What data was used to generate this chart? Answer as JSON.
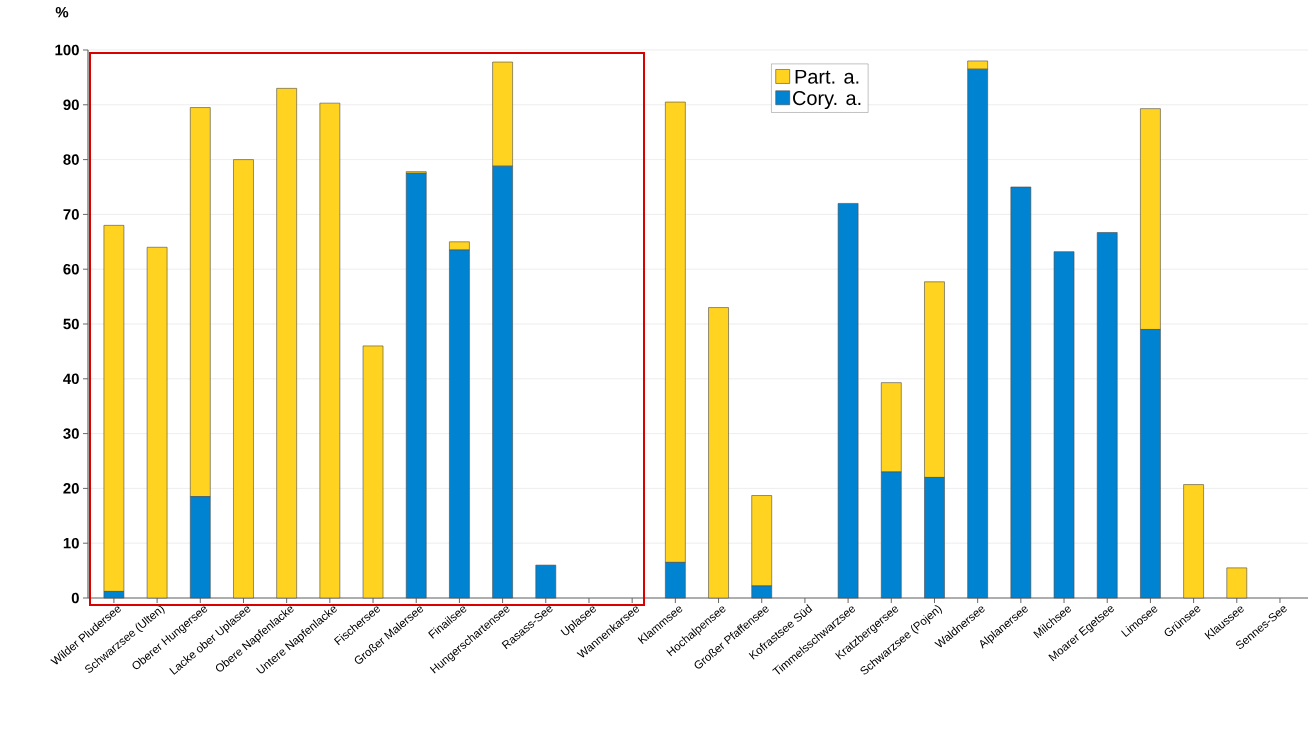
{
  "chart_data": {
    "type": "bar",
    "stacked": true,
    "ylabel": "%",
    "categories": [
      "Wilder Pludersee",
      "Schwarzsee (Ulten)",
      "Oberer Hungersee",
      "Lacke ober Uplasee",
      "Obere Napfenlacke",
      "Untere Napfenlacke",
      "Fischersee",
      "Großer Malersee",
      "Finailsee",
      "Hungerschartensee",
      "Rasass-See",
      "Uplasee",
      "Wannenkarsee",
      "Klammsee",
      "Hochalpensee",
      "Großer Pfaffensee",
      "Kofrastsee Süd",
      "Timmelsschwarzsee",
      "Kratzbergersee",
      "Schwarzsee (Pojen)",
      "Waldnersee",
      "Alplanersee",
      "Milchsee",
      "Moarer Egetsee",
      "Limosee",
      "Grünsee",
      "Klaussee",
      "Sennes-See"
    ],
    "series": [
      {
        "name": "Cory. a.",
        "color": "#0084d1",
        "values": [
          1.2,
          0,
          18.5,
          0,
          0,
          0,
          0,
          77.5,
          63.5,
          78.8,
          6,
          0,
          0,
          6.5,
          0,
          2.2,
          0,
          72,
          23,
          22,
          96.5,
          75,
          63.2,
          66.7,
          49,
          0,
          0,
          0
        ]
      },
      {
        "name": "Part. a.",
        "color": "#ffd320",
        "values": [
          66.8,
          64,
          71,
          80,
          93,
          90.3,
          46,
          0.3,
          1.5,
          19,
          0,
          0,
          0,
          84,
          53,
          16.5,
          0,
          0,
          16.3,
          35.7,
          1.5,
          0,
          0,
          0,
          40.3,
          20.7,
          5.5,
          0
        ]
      }
    ],
    "ylim": [
      0,
      100
    ],
    "yticks": [
      0,
      10,
      20,
      30,
      40,
      50,
      60,
      70,
      80,
      90,
      100
    ],
    "grid": "y",
    "legend": "top"
  }
}
